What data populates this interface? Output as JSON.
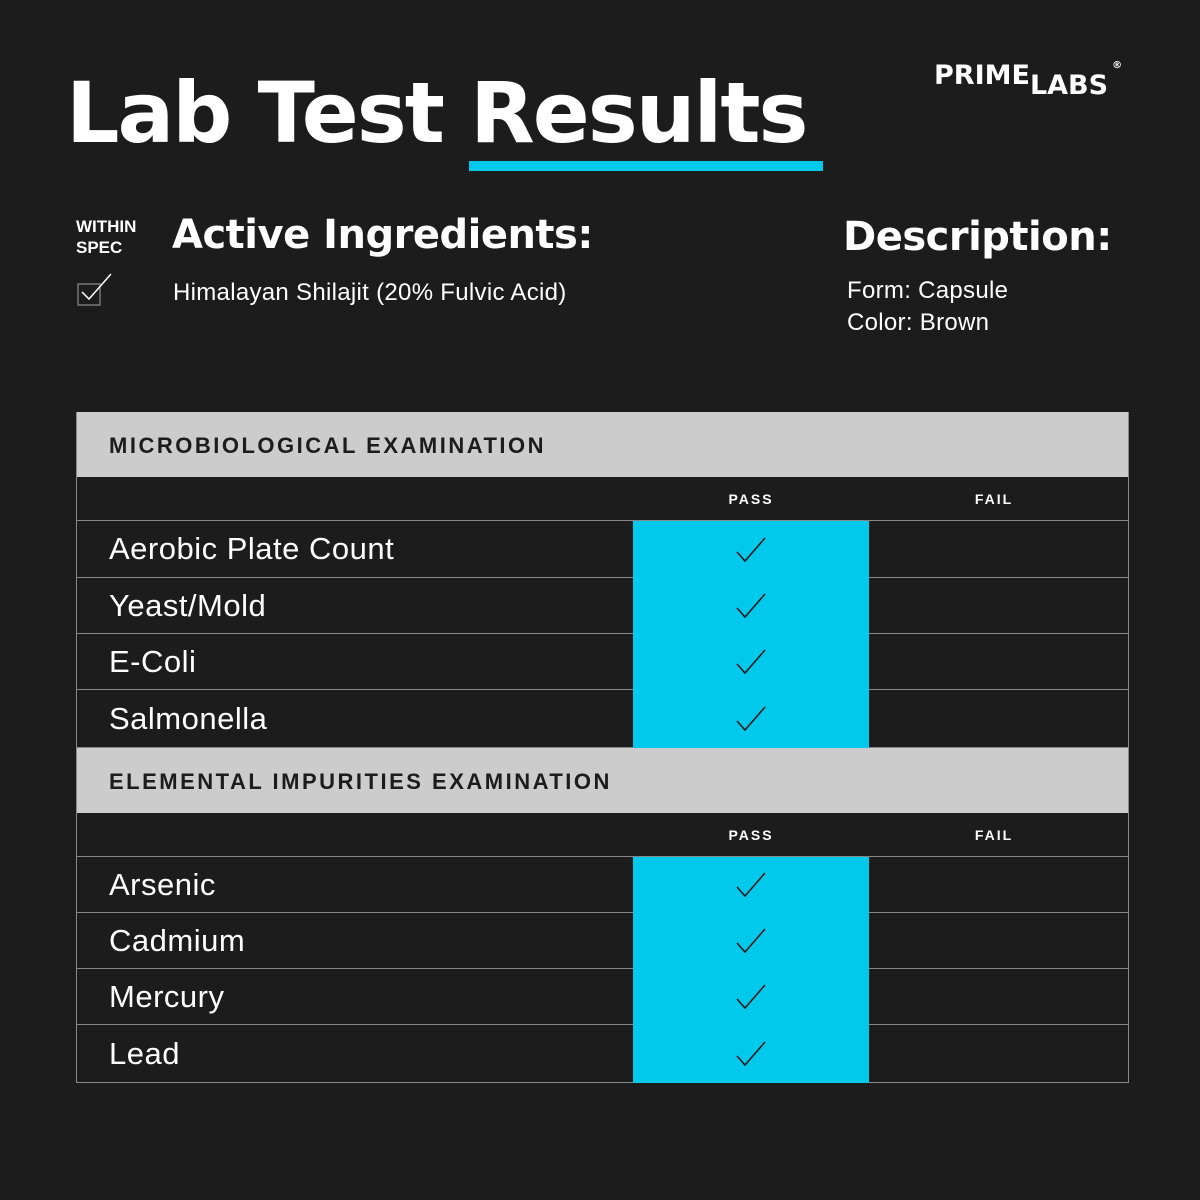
{
  "header": {
    "title": "Lab Test Results",
    "logo": {
      "prime": "PRIME",
      "labs": "LABS",
      "registered": "®"
    }
  },
  "spec": {
    "label_line1": "WITHIN",
    "label_line2": "SPEC",
    "checked": true
  },
  "active_ingredients": {
    "title": "Active Ingredients:",
    "text": "Himalayan Shilajit (20% Fulvic Acid)"
  },
  "description": {
    "title": "Description:",
    "form": "Form: Capsule",
    "color": "Color: Brown"
  },
  "colors": {
    "accent": "#00c9ec",
    "background": "#1c1c1c",
    "section_header": "#cccccc"
  },
  "sections": [
    {
      "title": "MICROBIOLOGICAL EXAMINATION",
      "pass_label": "PASS",
      "fail_label": "FAIL",
      "rows": [
        {
          "name": "Aerobic Plate Count",
          "result": "pass"
        },
        {
          "name": "Yeast/Mold",
          "result": "pass"
        },
        {
          "name": "E-Coli",
          "result": "pass"
        },
        {
          "name": "Salmonella",
          "result": "pass"
        }
      ]
    },
    {
      "title": "ELEMENTAL IMPURITIES EXAMINATION",
      "pass_label": "PASS",
      "fail_label": "FAIL",
      "rows": [
        {
          "name": "Arsenic",
          "result": "pass"
        },
        {
          "name": "Cadmium",
          "result": "pass"
        },
        {
          "name": "Mercury",
          "result": "pass"
        },
        {
          "name": "Lead",
          "result": "pass"
        }
      ]
    }
  ]
}
